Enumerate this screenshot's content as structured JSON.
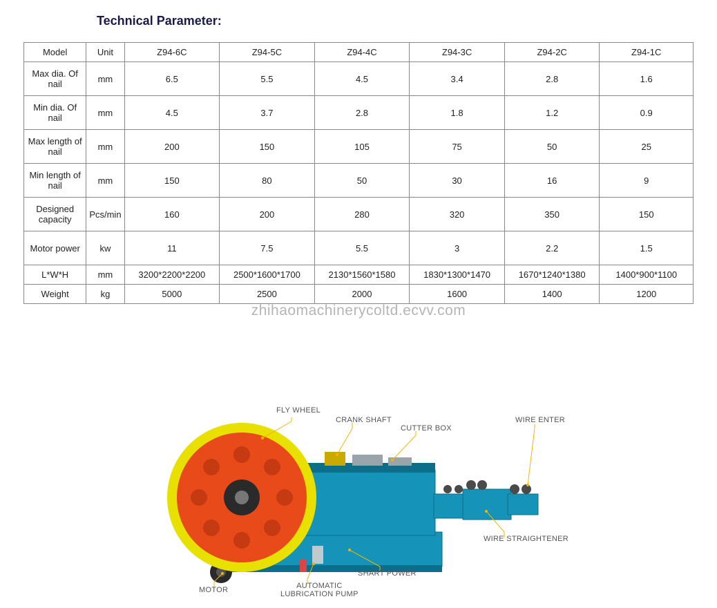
{
  "title": "Technical Parameter:",
  "watermark": "zhihaomachinerycoltd.ecvv.com",
  "table": {
    "columns": [
      "Model",
      "Unit",
      "Z94-6C",
      "Z94-5C",
      "Z94-4C",
      "Z94-3C",
      "Z94-2C",
      "Z94-1C"
    ],
    "rows": [
      {
        "label": "Max dia. Of nail",
        "unit": "mm",
        "vals": [
          "6.5",
          "5.5",
          "4.5",
          "3.4",
          "2.8",
          "1.6"
        ]
      },
      {
        "label": "Min dia. Of nail",
        "unit": "mm",
        "vals": [
          "4.5",
          "3.7",
          "2.8",
          "1.8",
          "1.2",
          "0.9"
        ]
      },
      {
        "label": "Max length of nail",
        "unit": "mm",
        "vals": [
          "200",
          "150",
          "105",
          "75",
          "50",
          "25"
        ]
      },
      {
        "label": "Min length of nail",
        "unit": "mm",
        "vals": [
          "150",
          "80",
          "50",
          "30",
          "16",
          "9"
        ]
      },
      {
        "label": "Designed capacity",
        "unit": "Pcs/min",
        "vals": [
          "160",
          "200",
          "280",
          "320",
          "350",
          "150"
        ]
      },
      {
        "label": "Motor power",
        "unit": "kw",
        "vals": [
          "11",
          "7.5",
          "5.5",
          "3",
          "2.2",
          "1.5"
        ]
      },
      {
        "label": "L*W*H",
        "unit": "mm",
        "vals": [
          "3200*2200*2200",
          "2500*1600*1700",
          "2130*1560*1580",
          "1830*1300*1470",
          "1670*1240*1380",
          "1400*900*1100"
        ]
      },
      {
        "label": "Weight",
        "unit": "kg",
        "vals": [
          "5000",
          "2500",
          "2000",
          "1600",
          "1400",
          "1200"
        ]
      }
    ],
    "border_color": "#888888",
    "text_color": "#222222",
    "header_fontsize": 13,
    "cell_fontsize": 13
  },
  "diagram": {
    "labels": {
      "flywheel": "FLY WHEEL",
      "crankshaft": "CRANK SHAFT",
      "cutterbox": "CUTTER BOX",
      "wireenter": "WIRE ENTER",
      "wirestraightener": "WIRE STRAIGHTENER",
      "shartpower": "SHART POWER",
      "autopump": "AUTOMATIC\nLUBRICATION PUMP",
      "motor": "MOTOR"
    },
    "colors": {
      "wheel_rim": "#e8e000",
      "wheel_face": "#e84a1a",
      "machine_body": "#1593b8",
      "machine_dark": "#0d6e8a",
      "tire": "#2a2a2a",
      "leader": "#f5b400",
      "label_text": "#555555",
      "metal": "#9aa5ab"
    },
    "label_fontsize": 11
  }
}
